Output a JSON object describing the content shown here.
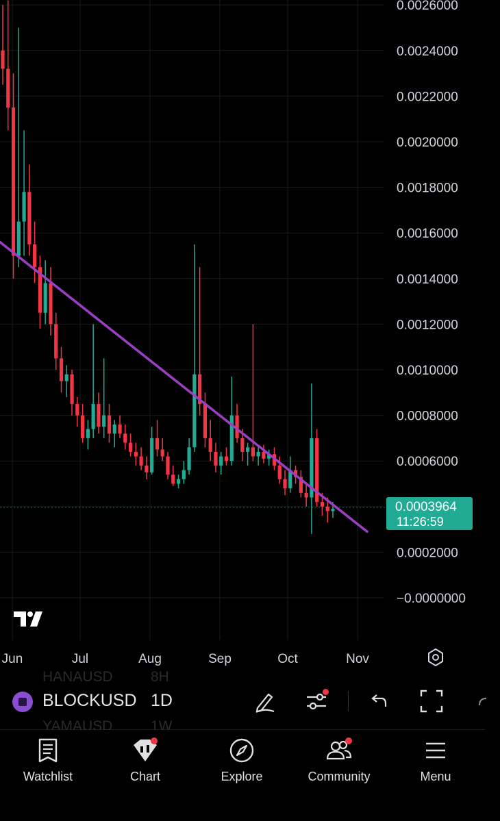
{
  "chart_data": {
    "type": "candlestick",
    "symbol": "BLOCKUSD",
    "interval": "1D",
    "y_ticks": [
      "0.0026000",
      "0.0024000",
      "0.0022000",
      "0.0020000",
      "0.0018000",
      "0.0016000",
      "0.0014000",
      "0.0012000",
      "0.0010000",
      "0.0008000",
      "0.0006000",
      "0.0002000",
      "−0.0000000"
    ],
    "x_ticks": [
      "Jun",
      "Jul",
      "Aug",
      "Sep",
      "Oct",
      "Nov"
    ],
    "last_price": "0.0003964",
    "countdown": "11:26:59",
    "ylim": [
      -0.0001,
      0.0026
    ],
    "trendline": {
      "start": [
        "Jun",
        0.00156
      ],
      "end": [
        "late Oct",
        0.00029
      ],
      "color": "#9c3fc4"
    },
    "colors": {
      "up": "#22ab94",
      "down": "#f23645",
      "trend": "#9c3fc4",
      "grid": "#1a1a1a"
    },
    "candles": [
      [
        0.0024,
        0.0026,
        0.00225,
        0.00232
      ],
      [
        0.00232,
        0.00262,
        0.00205,
        0.00215
      ],
      [
        0.00215,
        0.0023,
        0.0014,
        0.0015
      ],
      [
        0.0015,
        0.0025,
        0.00145,
        0.00165
      ],
      [
        0.00165,
        0.00205,
        0.0015,
        0.00178
      ],
      [
        0.00178,
        0.0019,
        0.0015,
        0.00155
      ],
      [
        0.00155,
        0.00165,
        0.00138,
        0.00145
      ],
      [
        0.00145,
        0.0015,
        0.00118,
        0.00125
      ],
      [
        0.00125,
        0.00148,
        0.0012,
        0.00138
      ],
      [
        0.00138,
        0.00145,
        0.00115,
        0.0012
      ],
      [
        0.0012,
        0.00125,
        0.001,
        0.00105
      ],
      [
        0.00105,
        0.0011,
        0.0009,
        0.00095
      ],
      [
        0.00095,
        0.00102,
        0.00088,
        0.00098
      ],
      [
        0.00098,
        0.001,
        0.0008,
        0.00085
      ],
      [
        0.00085,
        0.00088,
        0.00075,
        0.0008
      ],
      [
        0.0008,
        0.00085,
        0.00068,
        0.0007
      ],
      [
        0.0007,
        0.00078,
        0.00065,
        0.00074
      ],
      [
        0.00074,
        0.0012,
        0.0007,
        0.00085
      ],
      [
        0.00085,
        0.0009,
        0.00072,
        0.00075
      ],
      [
        0.00075,
        0.00105,
        0.0007,
        0.0008
      ],
      [
        0.0008,
        0.00085,
        0.00068,
        0.00072
      ],
      [
        0.00072,
        0.00078,
        0.00066,
        0.00076
      ],
      [
        0.00076,
        0.0008,
        0.0007,
        0.00072
      ],
      [
        0.00072,
        0.00076,
        0.00065,
        0.00068
      ],
      [
        0.00068,
        0.00072,
        0.00062,
        0.00064
      ],
      [
        0.00064,
        0.00068,
        0.00058,
        0.00062
      ],
      [
        0.00062,
        0.00066,
        0.00056,
        0.00058
      ],
      [
        0.00058,
        0.00062,
        0.00052,
        0.00055
      ],
      [
        0.00055,
        0.00075,
        0.00054,
        0.0007
      ],
      [
        0.0007,
        0.00078,
        0.00062,
        0.00065
      ],
      [
        0.00065,
        0.0007,
        0.0006,
        0.00062
      ],
      [
        0.00062,
        0.00064,
        0.00052,
        0.00054
      ],
      [
        0.00054,
        0.00058,
        0.00049,
        0.0005
      ],
      [
        0.0005,
        0.00054,
        0.00048,
        0.00052
      ],
      [
        0.00052,
        0.0006,
        0.0005,
        0.00056
      ],
      [
        0.00056,
        0.0007,
        0.00054,
        0.00066
      ],
      [
        0.00066,
        0.00155,
        0.00064,
        0.00098
      ],
      [
        0.00098,
        0.00145,
        0.0008,
        0.00085
      ],
      [
        0.00085,
        0.0009,
        0.00066,
        0.0007
      ],
      [
        0.0007,
        0.00078,
        0.0006,
        0.00064
      ],
      [
        0.00064,
        0.00068,
        0.00055,
        0.00058
      ],
      [
        0.00058,
        0.00064,
        0.00054,
        0.00062
      ],
      [
        0.00062,
        0.00066,
        0.00058,
        0.0006
      ],
      [
        0.0006,
        0.00097,
        0.00058,
        0.0008
      ],
      [
        0.0008,
        0.00085,
        0.00068,
        0.0007
      ],
      [
        0.0007,
        0.00074,
        0.0006,
        0.00064
      ],
      [
        0.00064,
        0.00068,
        0.00058,
        0.00066
      ],
      [
        0.00066,
        0.0012,
        0.0006,
        0.00062
      ],
      [
        0.00062,
        0.00066,
        0.00058,
        0.00064
      ],
      [
        0.00064,
        0.00067,
        0.00059,
        0.00061
      ],
      [
        0.00061,
        0.00065,
        0.00058,
        0.00063
      ],
      [
        0.00063,
        0.00066,
        0.00056,
        0.00058
      ],
      [
        0.00058,
        0.00062,
        0.0005,
        0.00052
      ],
      [
        0.00052,
        0.00056,
        0.00045,
        0.00048
      ],
      [
        0.00048,
        0.00062,
        0.00046,
        0.00056
      ],
      [
        0.00056,
        0.00058,
        0.0005,
        0.00053
      ],
      [
        0.00053,
        0.00056,
        0.00044,
        0.00046
      ],
      [
        0.00046,
        0.0005,
        0.0004,
        0.00044
      ],
      [
        0.00044,
        0.00094,
        0.00028,
        0.0007
      ],
      [
        0.0007,
        0.00074,
        0.0004,
        0.00042
      ],
      [
        0.00042,
        0.00046,
        0.00036,
        0.0004
      ],
      [
        0.0004,
        0.00044,
        0.00033,
        0.00038
      ],
      [
        0.00038,
        0.00042,
        0.00035,
        0.00039
      ]
    ]
  },
  "toolbar": {
    "symbol": "BLOCKUSD",
    "interval": "1D",
    "ghost_above_symbol": "HANAUSD",
    "ghost_above_interval": "8H",
    "ghost_below_symbol": "YAMAUSD",
    "ghost_below_interval": "1W"
  },
  "nav": {
    "items": [
      {
        "label": "Watchlist",
        "icon": "watchlist-icon"
      },
      {
        "label": "Chart",
        "icon": "chart-icon"
      },
      {
        "label": "Explore",
        "icon": "compass-icon"
      },
      {
        "label": "Community",
        "icon": "community-icon"
      },
      {
        "label": "Menu",
        "icon": "menu-icon"
      }
    ]
  }
}
